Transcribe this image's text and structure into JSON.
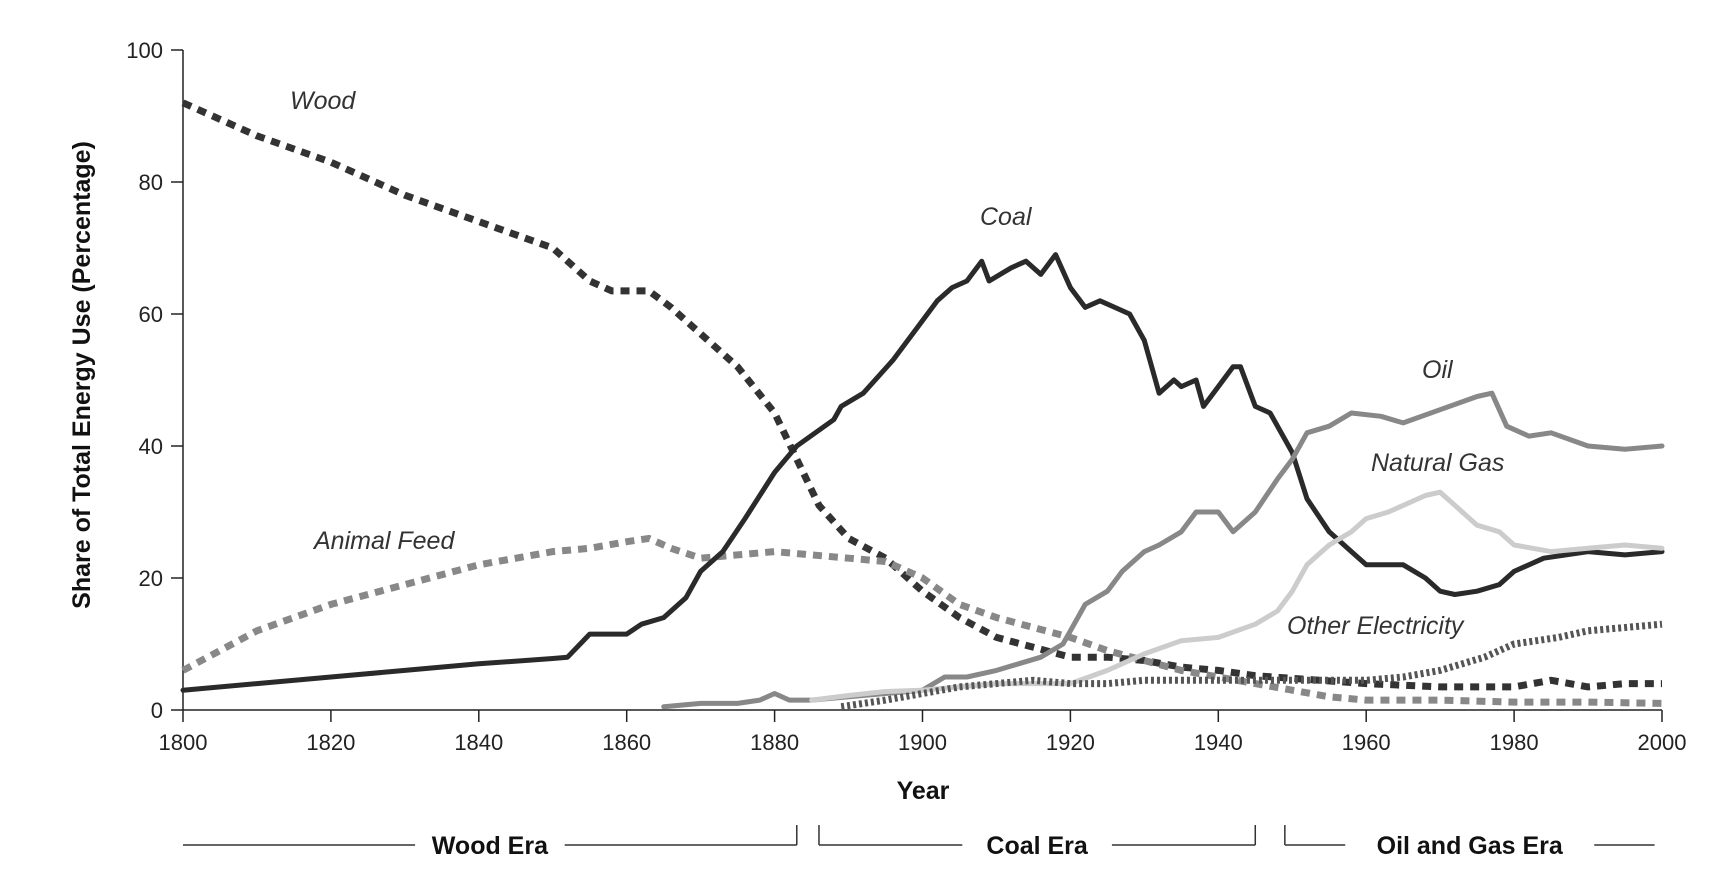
{
  "chart_data": {
    "type": "line",
    "title": "",
    "xlabel": "Year",
    "ylabel": "Share of Total Energy Use (Percentage)",
    "xlim": [
      1800,
      2000
    ],
    "ylim": [
      0,
      100
    ],
    "x_ticks": [
      1800,
      1820,
      1840,
      1860,
      1880,
      1900,
      1920,
      1940,
      1960,
      1980,
      2000
    ],
    "y_ticks": [
      0,
      20,
      40,
      60,
      80,
      100
    ],
    "grid": false,
    "legend": "none (series labeled directly on the plot)",
    "series": [
      {
        "name": "Wood",
        "color": "#333333",
        "style": "dashed",
        "points": [
          [
            1800,
            92
          ],
          [
            1810,
            87
          ],
          [
            1820,
            83
          ],
          [
            1830,
            78
          ],
          [
            1840,
            74
          ],
          [
            1850,
            70
          ],
          [
            1855,
            65
          ],
          [
            1858,
            63.5
          ],
          [
            1863,
            63.5
          ],
          [
            1866,
            61
          ],
          [
            1870,
            57
          ],
          [
            1875,
            52
          ],
          [
            1880,
            45
          ],
          [
            1883,
            38
          ],
          [
            1886,
            31
          ],
          [
            1890,
            26
          ],
          [
            1895,
            23
          ],
          [
            1900,
            18
          ],
          [
            1905,
            14
          ],
          [
            1910,
            11
          ],
          [
            1915,
            9.5
          ],
          [
            1920,
            8
          ],
          [
            1925,
            8
          ],
          [
            1930,
            7.5
          ],
          [
            1935,
            6.5
          ],
          [
            1940,
            6
          ],
          [
            1945,
            5.2
          ],
          [
            1950,
            4.8
          ],
          [
            1960,
            4
          ],
          [
            1970,
            3.5
          ],
          [
            1980,
            3.5
          ],
          [
            1985,
            4.5
          ],
          [
            1990,
            3.5
          ],
          [
            1995,
            4
          ],
          [
            2000,
            4
          ]
        ]
      },
      {
        "name": "Animal Feed",
        "color": "#888888",
        "style": "dashed",
        "points": [
          [
            1800,
            6
          ],
          [
            1810,
            12
          ],
          [
            1820,
            16
          ],
          [
            1830,
            19
          ],
          [
            1840,
            22
          ],
          [
            1850,
            24
          ],
          [
            1855,
            24.5
          ],
          [
            1860,
            25.5
          ],
          [
            1863,
            26
          ],
          [
            1866,
            24.5
          ],
          [
            1870,
            23
          ],
          [
            1875,
            23.5
          ],
          [
            1880,
            24
          ],
          [
            1885,
            23.5
          ],
          [
            1890,
            23
          ],
          [
            1895,
            22.5
          ],
          [
            1900,
            20
          ],
          [
            1905,
            16
          ],
          [
            1910,
            14
          ],
          [
            1915,
            12.5
          ],
          [
            1920,
            11
          ],
          [
            1925,
            9
          ],
          [
            1930,
            7.5
          ],
          [
            1935,
            6
          ],
          [
            1940,
            5
          ],
          [
            1945,
            4
          ],
          [
            1950,
            3
          ],
          [
            1955,
            2
          ],
          [
            1960,
            1.5
          ],
          [
            1970,
            1.5
          ],
          [
            1980,
            1.2
          ],
          [
            1990,
            1.2
          ],
          [
            2000,
            1
          ]
        ]
      },
      {
        "name": "Coal",
        "color": "#2a2a2a",
        "style": "solid",
        "points": [
          [
            1800,
            3
          ],
          [
            1810,
            4
          ],
          [
            1820,
            5
          ],
          [
            1830,
            6
          ],
          [
            1840,
            7
          ],
          [
            1850,
            7.8
          ],
          [
            1852,
            8
          ],
          [
            1855,
            11.5
          ],
          [
            1860,
            11.5
          ],
          [
            1862,
            13
          ],
          [
            1865,
            14
          ],
          [
            1868,
            17
          ],
          [
            1870,
            21
          ],
          [
            1873,
            24
          ],
          [
            1876,
            29
          ],
          [
            1880,
            36
          ],
          [
            1883,
            40
          ],
          [
            1888,
            44
          ],
          [
            1889,
            46
          ],
          [
            1892,
            48
          ],
          [
            1896,
            53
          ],
          [
            1900,
            59
          ],
          [
            1902,
            62
          ],
          [
            1904,
            64
          ],
          [
            1906,
            65
          ],
          [
            1908,
            68
          ],
          [
            1909,
            65
          ],
          [
            1912,
            67
          ],
          [
            1914,
            68
          ],
          [
            1916,
            66
          ],
          [
            1918,
            69
          ],
          [
            1920,
            64
          ],
          [
            1922,
            61
          ],
          [
            1924,
            62
          ],
          [
            1926,
            61
          ],
          [
            1928,
            60
          ],
          [
            1930,
            56
          ],
          [
            1932,
            48
          ],
          [
            1934,
            50
          ],
          [
            1935,
            49
          ],
          [
            1937,
            50
          ],
          [
            1938,
            46
          ],
          [
            1940,
            49
          ],
          [
            1942,
            52
          ],
          [
            1943,
            52
          ],
          [
            1945,
            46
          ],
          [
            1947,
            45
          ],
          [
            1950,
            39
          ],
          [
            1952,
            32
          ],
          [
            1955,
            27
          ],
          [
            1958,
            24
          ],
          [
            1960,
            22
          ],
          [
            1962,
            22
          ],
          [
            1965,
            22
          ],
          [
            1968,
            20
          ],
          [
            1970,
            18
          ],
          [
            1972,
            17.5
          ],
          [
            1975,
            18
          ],
          [
            1978,
            19
          ],
          [
            1980,
            21
          ],
          [
            1984,
            23
          ],
          [
            1990,
            24
          ],
          [
            1995,
            23.5
          ],
          [
            2000,
            24
          ]
        ]
      },
      {
        "name": "Oil",
        "color": "#888888",
        "style": "solid",
        "points": [
          [
            1865,
            0.5
          ],
          [
            1870,
            1
          ],
          [
            1875,
            1
          ],
          [
            1878,
            1.5
          ],
          [
            1880,
            2.5
          ],
          [
            1882,
            1.5
          ],
          [
            1885,
            1.5
          ],
          [
            1890,
            2
          ],
          [
            1895,
            2.5
          ],
          [
            1900,
            3
          ],
          [
            1903,
            5
          ],
          [
            1906,
            5
          ],
          [
            1910,
            6
          ],
          [
            1913,
            7
          ],
          [
            1916,
            8
          ],
          [
            1919,
            10
          ],
          [
            1920,
            12
          ],
          [
            1922,
            16
          ],
          [
            1925,
            18
          ],
          [
            1927,
            21
          ],
          [
            1930,
            24
          ],
          [
            1932,
            25
          ],
          [
            1935,
            27
          ],
          [
            1937,
            30
          ],
          [
            1940,
            30
          ],
          [
            1942,
            27
          ],
          [
            1945,
            30
          ],
          [
            1948,
            35
          ],
          [
            1950,
            38
          ],
          [
            1952,
            42
          ],
          [
            1955,
            43
          ],
          [
            1958,
            45
          ],
          [
            1962,
            44.5
          ],
          [
            1965,
            43.5
          ],
          [
            1970,
            45.5
          ],
          [
            1975,
            47.5
          ],
          [
            1977,
            48
          ],
          [
            1979,
            43
          ],
          [
            1982,
            41.5
          ],
          [
            1985,
            42
          ],
          [
            1990,
            40
          ],
          [
            1995,
            39.5
          ],
          [
            2000,
            40
          ]
        ]
      },
      {
        "name": "Natural Gas",
        "color": "#cccccc",
        "style": "solid",
        "points": [
          [
            1885,
            1.5
          ],
          [
            1890,
            2.2
          ],
          [
            1895,
            2.8
          ],
          [
            1900,
            3
          ],
          [
            1905,
            3.5
          ],
          [
            1910,
            4
          ],
          [
            1915,
            4
          ],
          [
            1920,
            4
          ],
          [
            1925,
            6
          ],
          [
            1930,
            8.5
          ],
          [
            1935,
            10.5
          ],
          [
            1940,
            11
          ],
          [
            1945,
            13
          ],
          [
            1948,
            15
          ],
          [
            1950,
            18
          ],
          [
            1952,
            22
          ],
          [
            1955,
            25
          ],
          [
            1958,
            27
          ],
          [
            1960,
            29
          ],
          [
            1963,
            30
          ],
          [
            1966,
            31.5
          ],
          [
            1968,
            32.5
          ],
          [
            1970,
            33
          ],
          [
            1972,
            31
          ],
          [
            1975,
            28
          ],
          [
            1978,
            27
          ],
          [
            1980,
            25
          ],
          [
            1985,
            24
          ],
          [
            1990,
            24.5
          ],
          [
            1995,
            25
          ],
          [
            2000,
            24.5
          ]
        ]
      },
      {
        "name": "Other Electricity",
        "color": "#555555",
        "style": "dotted",
        "points": [
          [
            1889,
            0.5
          ],
          [
            1895,
            1.5
          ],
          [
            1900,
            2.5
          ],
          [
            1905,
            3.5
          ],
          [
            1910,
            4
          ],
          [
            1915,
            4.5
          ],
          [
            1920,
            4
          ],
          [
            1925,
            4
          ],
          [
            1930,
            4.5
          ],
          [
            1935,
            4.5
          ],
          [
            1940,
            4.5
          ],
          [
            1945,
            4.5
          ],
          [
            1950,
            4.5
          ],
          [
            1955,
            4.5
          ],
          [
            1960,
            4.5
          ],
          [
            1965,
            5
          ],
          [
            1970,
            6
          ],
          [
            1973,
            7
          ],
          [
            1976,
            8
          ],
          [
            1980,
            10
          ],
          [
            1983,
            10.5
          ],
          [
            1986,
            11
          ],
          [
            1990,
            12
          ],
          [
            1995,
            12.5
          ],
          [
            2000,
            13
          ]
        ]
      }
    ]
  },
  "labels": {
    "wood": "Wood",
    "animal_feed": "Animal Feed",
    "coal": "Coal",
    "oil": "Oil",
    "natural_gas": "Natural Gas",
    "other_electricity": "Other Electricity"
  },
  "eras": [
    {
      "label": "Wood Era",
      "from": 1800,
      "to": 1883
    },
    {
      "label": "Coal Era",
      "from": 1886,
      "to": 1945
    },
    {
      "label": "Oil and Gas Era",
      "from": 1949,
      "to": 1999
    }
  ]
}
